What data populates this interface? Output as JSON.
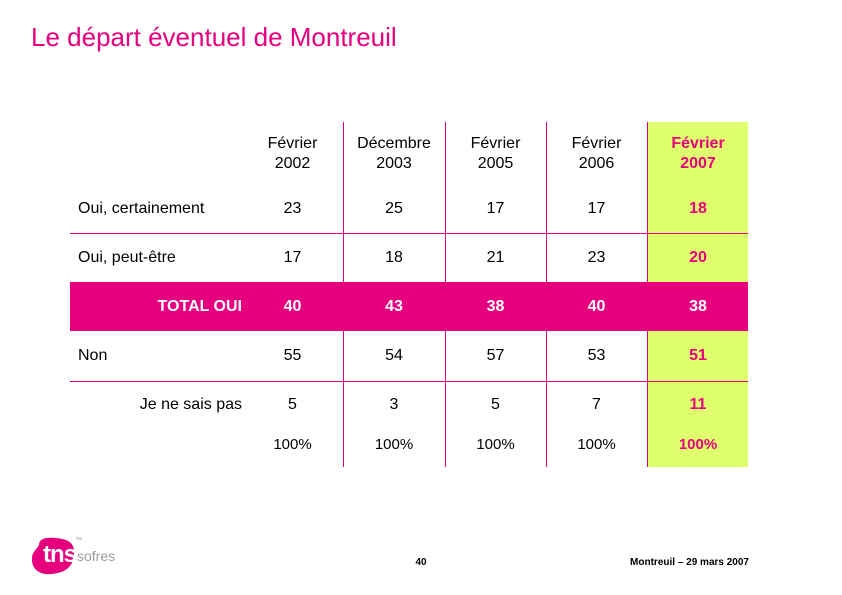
{
  "title": "Le départ éventuel de Montreuil",
  "table": {
    "columns": [
      {
        "month": "Février",
        "year": "2002"
      },
      {
        "month": "Décembre",
        "year": "2003"
      },
      {
        "month": "Février",
        "year": "2005"
      },
      {
        "month": "Février",
        "year": "2006"
      },
      {
        "month": "Février",
        "year": "2007"
      }
    ],
    "rows": [
      {
        "label": "Oui, certainement",
        "values": [
          "23",
          "25",
          "17",
          "17",
          "18"
        ]
      },
      {
        "label": "Oui, peut-être",
        "values": [
          "17",
          "18",
          "21",
          "23",
          "20"
        ]
      },
      {
        "label": "TOTAL OUI",
        "values": [
          "40",
          "43",
          "38",
          "40",
          "38"
        ]
      },
      {
        "label": "Non",
        "values": [
          "55",
          "54",
          "57",
          "53",
          "51"
        ]
      },
      {
        "label": "Je ne sais pas",
        "values": [
          "5",
          "3",
          "5",
          "7",
          "11"
        ]
      }
    ],
    "totals": [
      "100%",
      "100%",
      "100%",
      "100%",
      "100%"
    ]
  },
  "footer": {
    "page_number": "40",
    "caption": "Montreuil – 29 mars 2007"
  },
  "logo": {
    "brand": "tns",
    "sub": "sofres",
    "trademark": "™"
  },
  "colors": {
    "accent": "#e6007e",
    "highlight": "#dfff6e"
  }
}
